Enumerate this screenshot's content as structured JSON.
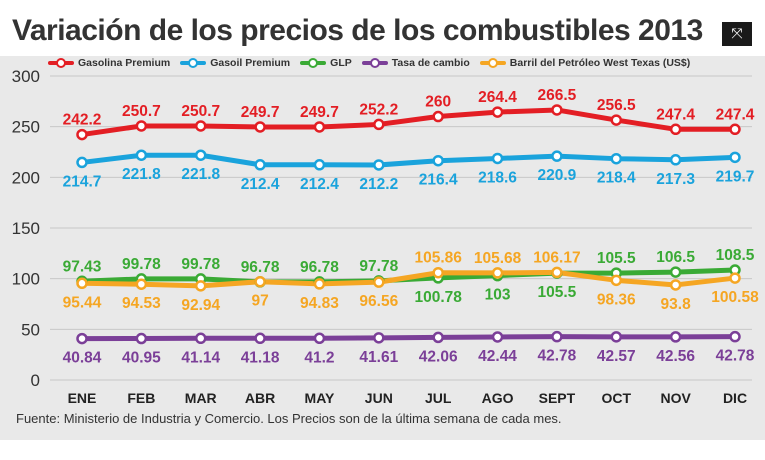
{
  "title": "Variación de los precios de los combustibles 2013",
  "source": "Fuente: Ministerio de Industria y Comercio. Los Precios son de la última semana de cada mes.",
  "controls": {
    "close_icon": "close-icon",
    "close_glyph": "⤧"
  },
  "chart_data": {
    "type": "line",
    "title": "Variación de los precios de los combustibles 2013",
    "xlabel": "",
    "ylabel": "",
    "ylim": [
      0,
      300
    ],
    "yticks": [
      0,
      50,
      100,
      150,
      200,
      250,
      300
    ],
    "grid": true,
    "legend": "top",
    "categories": [
      "ENE",
      "FEB",
      "MAR",
      "ABR",
      "MAY",
      "JUN",
      "JUL",
      "AGO",
      "SEPT",
      "OCT",
      "NOV",
      "DIC"
    ],
    "series": [
      {
        "name": "Gasolina Premium",
        "color": "#e31e24",
        "values": [
          242.2,
          250.7,
          250.7,
          249.7,
          249.7,
          252.2,
          260,
          264.4,
          266.5,
          256.5,
          247.4,
          247.4
        ],
        "labels": [
          "242.2",
          "250.7",
          "250.7",
          "249.7",
          "249.7",
          "252.2",
          "260",
          "264.4",
          "266.5",
          "256.5",
          "247.4",
          "247.4"
        ],
        "label_position": [
          "above",
          "above",
          "above",
          "above",
          "above",
          "above",
          "above",
          "above",
          "above",
          "above",
          "above",
          "above"
        ]
      },
      {
        "name": "Gasoil Premium",
        "color": "#1aa3dc",
        "values": [
          214.7,
          221.8,
          221.8,
          212.4,
          212.4,
          212.2,
          216.4,
          218.6,
          220.9,
          218.4,
          217.3,
          219.7
        ],
        "labels": [
          "214.7",
          "221.8",
          "221.8",
          "212.4",
          "212.4",
          "212.2",
          "216.4",
          "218.6",
          "220.9",
          "218.4",
          "217.3",
          "219.7"
        ],
        "label_position": [
          "below",
          "below",
          "below",
          "below",
          "below",
          "below",
          "below",
          "below",
          "below",
          "below",
          "below",
          "below"
        ]
      },
      {
        "name": "GLP",
        "color": "#3aaa35",
        "values": [
          97.43,
          99.78,
          99.78,
          96.78,
          96.78,
          97.78,
          100.78,
          103,
          105.5,
          105.5,
          106.5,
          108.5
        ],
        "labels": [
          "97.43",
          "99.78",
          "99.78",
          "96.78",
          "96.78",
          "97.78",
          "100.78",
          "103",
          "105.5",
          "105.5",
          "106.5",
          "108.5"
        ],
        "label_position": [
          "above",
          "above",
          "above",
          "above",
          "above",
          "above",
          "below",
          "below",
          "below",
          "above",
          "above",
          "above"
        ]
      },
      {
        "name": "Tasa de cambio",
        "color": "#7b3f98",
        "values": [
          40.84,
          40.95,
          41.14,
          41.18,
          41.2,
          41.61,
          42.06,
          42.44,
          42.78,
          42.57,
          42.56,
          42.78
        ],
        "labels": [
          "40.84",
          "40.95",
          "41.14",
          "41.18",
          "41.2",
          "41.61",
          "42.06",
          "42.44",
          "42.78",
          "42.57",
          "42.56",
          "42.78"
        ],
        "label_position": [
          "below",
          "below",
          "below",
          "below",
          "below",
          "below",
          "below",
          "below",
          "below",
          "below",
          "below",
          "below"
        ]
      },
      {
        "name": "Barril del Petróleo West Texas (US$)",
        "color": "#f5a623",
        "values": [
          95.44,
          94.53,
          92.94,
          97,
          94.83,
          96.56,
          105.86,
          105.68,
          106.17,
          98.36,
          93.8,
          100.58
        ],
        "labels": [
          "95.44",
          "94.53",
          "92.94",
          "97",
          "94.83",
          "96.56",
          "105.86",
          "105.68",
          "106.17",
          "98.36",
          "93.8",
          "100.58"
        ],
        "label_position": [
          "below",
          "below",
          "below",
          "below",
          "below",
          "below",
          "above",
          "above",
          "above",
          "below",
          "below",
          "below"
        ]
      }
    ]
  }
}
